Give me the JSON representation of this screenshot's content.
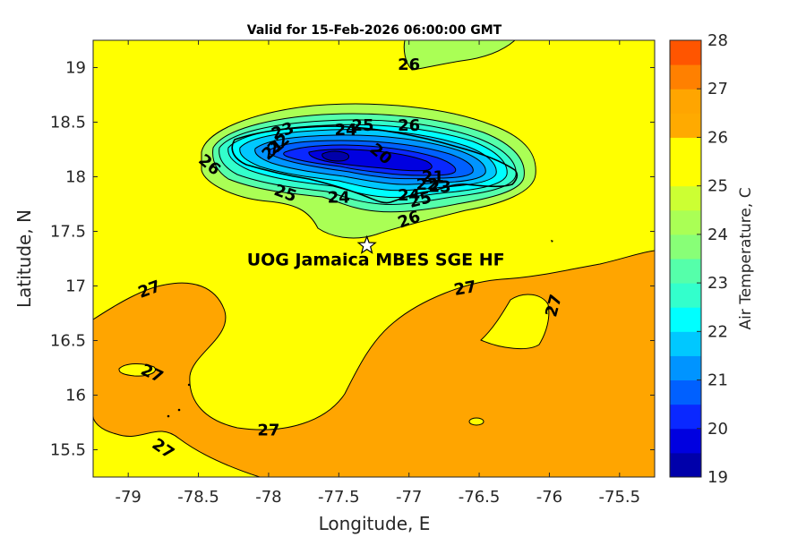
{
  "chart_data": {
    "type": "contour-map",
    "title": "Valid for 15-Feb-2026 06:00:00 GMT",
    "xlabel": "Longitude, E",
    "ylabel": "Latitude, N",
    "xlim": [
      -79.25,
      -75.25
    ],
    "ylim": [
      15.25,
      19.25
    ],
    "xticks": [
      -79,
      -78.5,
      -78,
      -77.5,
      -77,
      -76.5,
      -76,
      -75.5
    ],
    "xtick_labels": [
      "-79",
      "-78.5",
      "-78",
      "-77.5",
      "-77",
      "-76.5",
      "-76",
      "-75.5"
    ],
    "yticks": [
      15.5,
      16,
      16.5,
      17,
      17.5,
      18,
      18.5,
      19
    ],
    "ytick_labels": [
      "15.5",
      "16",
      "16.5",
      "17",
      "17.5",
      "18",
      "18.5",
      "19"
    ],
    "colorbar": {
      "label": "Air Temperature, C",
      "ticks": [
        "19",
        "20",
        "21",
        "22",
        "23",
        "24",
        "25",
        "26",
        "27",
        "28"
      ],
      "levels": [
        19,
        19.5,
        20,
        20.5,
        21,
        21.5,
        22,
        22.5,
        23,
        23.5,
        24,
        24.5,
        25,
        25.5,
        26,
        26.5,
        27,
        27.5,
        28
      ],
      "colors": [
        "#0000aa",
        "#0000e0",
        "#0a28ff",
        "#0060ff",
        "#0094ff",
        "#00c8ff",
        "#00ffff",
        "#33ffcc",
        "#55ffaa",
        "#88ff77",
        "#aaff55",
        "#ccff33",
        "#ffff00",
        "#ffff00",
        "#ffaa00",
        "#ffa500",
        "#ff8000",
        "#ff5500"
      ]
    },
    "contour_labels": [
      {
        "text": "26",
        "lon": -77.0,
        "lat": 19.03,
        "rot": 0
      },
      {
        "text": "26",
        "lon": -77.0,
        "lat": 18.47,
        "rot": 0
      },
      {
        "text": "25",
        "lon": -77.33,
        "lat": 18.47,
        "rot": 0
      },
      {
        "text": "24",
        "lon": -77.45,
        "lat": 18.43,
        "rot": 0
      },
      {
        "text": "23",
        "lon": -77.9,
        "lat": 18.42,
        "rot": -20
      },
      {
        "text": "22",
        "lon": -77.93,
        "lat": 18.3,
        "rot": -40
      },
      {
        "text": "21",
        "lon": -77.97,
        "lat": 18.25,
        "rot": -40
      },
      {
        "text": "20",
        "lon": -77.2,
        "lat": 18.21,
        "rot": 40
      },
      {
        "text": "21",
        "lon": -76.83,
        "lat": 18.0,
        "rot": 0
      },
      {
        "text": "22",
        "lon": -76.87,
        "lat": 17.93,
        "rot": 0
      },
      {
        "text": "23",
        "lon": -76.78,
        "lat": 17.91,
        "rot": 0
      },
      {
        "text": "24",
        "lon": -77.0,
        "lat": 17.83,
        "rot": 0
      },
      {
        "text": "25",
        "lon": -76.92,
        "lat": 17.79,
        "rot": -15
      },
      {
        "text": "24",
        "lon": -77.5,
        "lat": 17.81,
        "rot": 0
      },
      {
        "text": "25",
        "lon": -77.88,
        "lat": 17.85,
        "rot": 20
      },
      {
        "text": "26",
        "lon": -78.42,
        "lat": 18.11,
        "rot": 40
      },
      {
        "text": "26",
        "lon": -77.0,
        "lat": 17.61,
        "rot": -20
      },
      {
        "text": "27",
        "lon": -78.85,
        "lat": 16.97,
        "rot": -20
      },
      {
        "text": "27",
        "lon": -76.6,
        "lat": 16.98,
        "rot": -10
      },
      {
        "text": "27",
        "lon": -75.97,
        "lat": 16.82,
        "rot": -75
      },
      {
        "text": "27",
        "lon": -78.83,
        "lat": 16.2,
        "rot": 25
      },
      {
        "text": "27",
        "lon": -78.0,
        "lat": 15.68,
        "rot": 0
      },
      {
        "text": "27",
        "lon": -78.75,
        "lat": 15.51,
        "rot": 35
      }
    ],
    "station": {
      "name": "UOG Jamaica MBES SGE HF",
      "lon": -77.3,
      "lat": 17.37
    }
  }
}
